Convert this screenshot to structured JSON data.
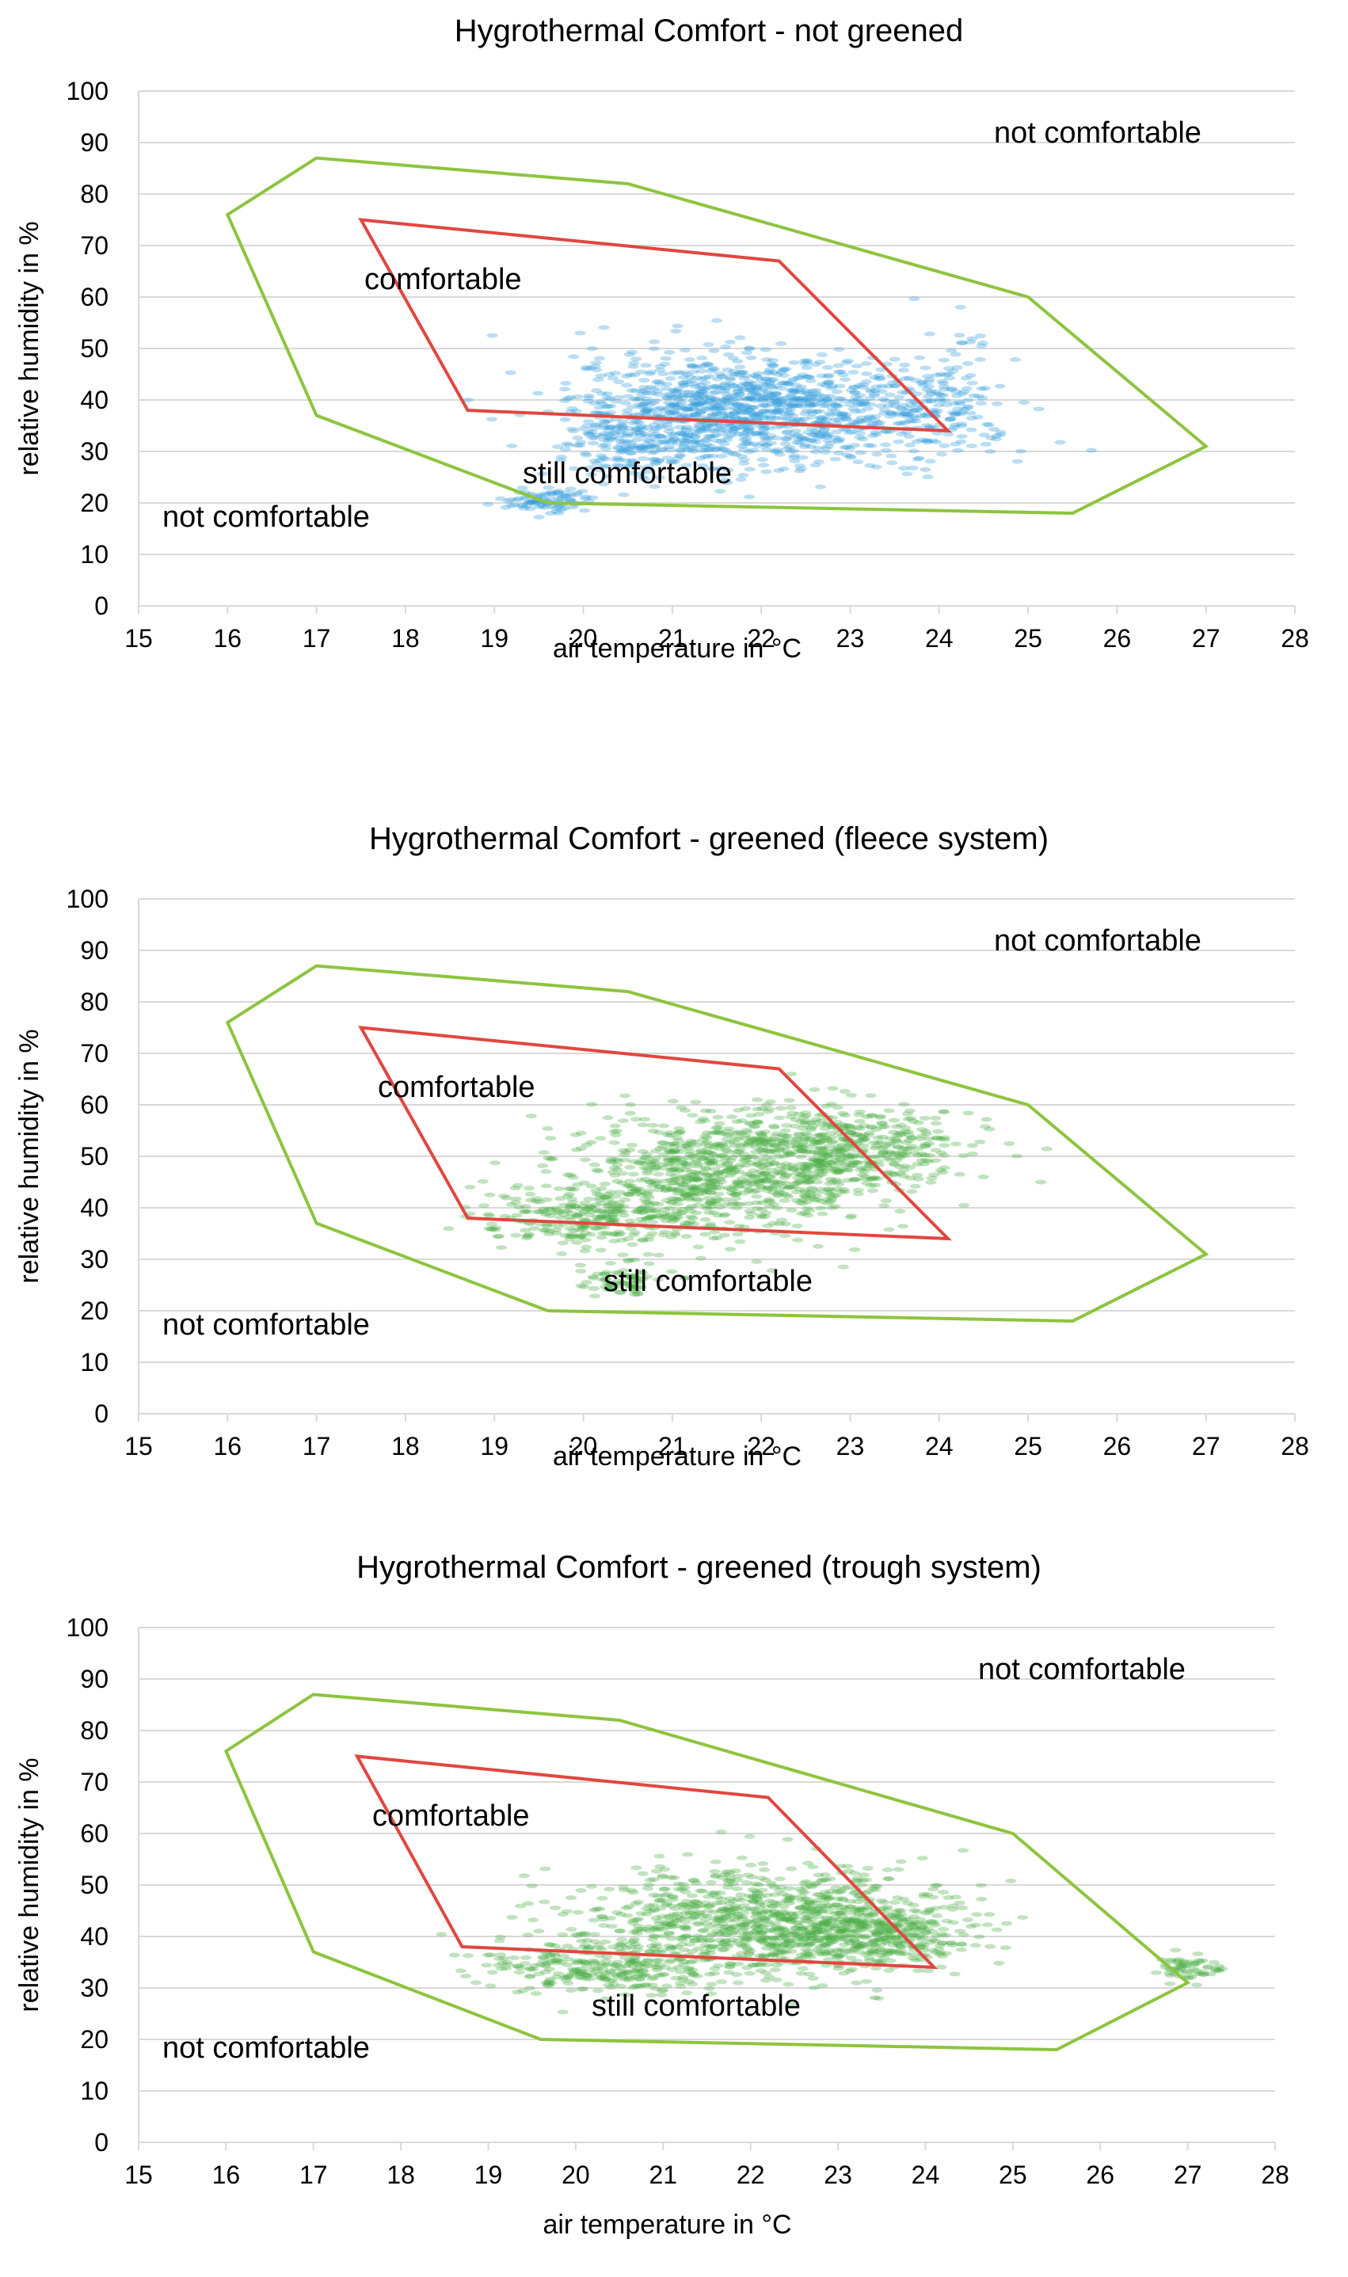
{
  "chart_data": [
    {
      "type": "scatter",
      "title": "Hygrothermal Comfort - not greened",
      "xlabel": "air temperature in °C",
      "ylabel": "relative humidity in %",
      "xlim": [
        15,
        28
      ],
      "ylim": [
        0,
        100
      ],
      "xticks": [
        "15",
        "16",
        "17",
        "18",
        "19",
        "20",
        "21",
        "22",
        "23",
        "24",
        "25",
        "26",
        "27",
        "28"
      ],
      "yticks": [
        "0",
        "10",
        "20",
        "30",
        "40",
        "50",
        "60",
        "70",
        "80",
        "90",
        "100"
      ],
      "grid": true,
      "point_color": "#3aa0dc",
      "zones": [
        {
          "color": "#8dc43f",
          "points": [
            [
              16,
              76
            ],
            [
              17,
              87
            ],
            [
              20.5,
              82
            ],
            [
              25,
              60
            ],
            [
              27,
              31
            ],
            [
              25.5,
              18
            ],
            [
              19.6,
              20
            ],
            [
              17,
              37
            ]
          ]
        },
        {
          "color": "#e0473f",
          "points": [
            [
              17.5,
              75
            ],
            [
              22.2,
              67
            ],
            [
              24.1,
              34
            ],
            [
              18.7,
              38
            ]
          ]
        }
      ],
      "annotations": [
        "not comfortable",
        "comfortable",
        "still comfortable",
        "not comfortable"
      ],
      "clusters": [
        {
          "cx": 21.5,
          "cy": 38,
          "sx": 0.8,
          "sy": 5.5,
          "n": 900
        },
        {
          "cx": 23,
          "cy": 38,
          "sx": 0.8,
          "sy": 4.5,
          "n": 350
        },
        {
          "cx": 24.1,
          "cy": 40,
          "sx": 0.35,
          "sy": 6,
          "n": 120
        },
        {
          "cx": 19.6,
          "cy": 20.5,
          "sx": 0.25,
          "sy": 1.0,
          "n": 90
        },
        {
          "cx": 20.5,
          "cy": 30,
          "sx": 0.4,
          "sy": 3.0,
          "n": 120
        }
      ]
    },
    {
      "type": "scatter",
      "title": "Hygrothermal Comfort - greened (fleece system)",
      "xlabel": "air temperature in °C",
      "ylabel": "relative humidity in %",
      "xlim": [
        15,
        28
      ],
      "ylim": [
        0,
        100
      ],
      "xticks": [
        "15",
        "16",
        "17",
        "18",
        "19",
        "20",
        "21",
        "22",
        "23",
        "24",
        "25",
        "26",
        "27",
        "28"
      ],
      "yticks": [
        "0",
        "10",
        "20",
        "30",
        "40",
        "50",
        "60",
        "70",
        "80",
        "90",
        "100"
      ],
      "grid": true,
      "point_color": "#4cae49",
      "zones": [
        {
          "color": "#8dc43f",
          "points": [
            [
              16,
              76
            ],
            [
              17,
              87
            ],
            [
              20.5,
              82
            ],
            [
              25,
              60
            ],
            [
              27,
              31
            ],
            [
              25.5,
              18
            ],
            [
              19.6,
              20
            ],
            [
              17,
              37
            ]
          ]
        },
        {
          "color": "#e0473f",
          "points": [
            [
              17.5,
              75
            ],
            [
              22.2,
              67
            ],
            [
              24.1,
              34
            ],
            [
              18.7,
              38
            ]
          ]
        }
      ],
      "annotations": [
        "not comfortable",
        "comfortable",
        "still comfortable",
        "not comfortable"
      ],
      "clusters": [
        {
          "cx": 21.8,
          "cy": 48,
          "sx": 0.9,
          "sy": 5.5,
          "n": 950
        },
        {
          "cx": 20.2,
          "cy": 38,
          "sx": 0.7,
          "sy": 3.5,
          "n": 320
        },
        {
          "cx": 23.2,
          "cy": 52,
          "sx": 0.6,
          "sy": 4.0,
          "n": 260
        },
        {
          "cx": 20.4,
          "cy": 26,
          "sx": 0.25,
          "sy": 1.5,
          "n": 70
        }
      ]
    },
    {
      "type": "scatter",
      "title": "Hygrothermal Comfort - greened (trough system)",
      "xlabel": "air temperature in °C",
      "ylabel": "relative humidity in %",
      "xlim": [
        15,
        28
      ],
      "ylim": [
        0,
        100
      ],
      "xticks": [
        "15",
        "16",
        "17",
        "18",
        "19",
        "20",
        "21",
        "22",
        "23",
        "24",
        "25",
        "26",
        "27",
        "28"
      ],
      "yticks": [
        "0",
        "10",
        "20",
        "30",
        "40",
        "50",
        "60",
        "70",
        "80",
        "90",
        "100"
      ],
      "grid": true,
      "point_color": "#4cae49",
      "zones": [
        {
          "color": "#8dc43f",
          "points": [
            [
              16,
              76
            ],
            [
              17,
              87
            ],
            [
              20.5,
              82
            ],
            [
              25,
              60
            ],
            [
              27,
              31
            ],
            [
              25.5,
              18
            ],
            [
              19.6,
              20
            ],
            [
              17,
              37
            ]
          ]
        },
        {
          "color": "#e0473f",
          "points": [
            [
              17.5,
              75
            ],
            [
              22.2,
              67
            ],
            [
              24.1,
              34
            ],
            [
              18.7,
              38
            ]
          ]
        }
      ],
      "annotations": [
        "not comfortable",
        "comfortable",
        "still comfortable",
        "not comfortable"
      ],
      "clusters": [
        {
          "cx": 22.2,
          "cy": 43,
          "sx": 1.0,
          "sy": 5.0,
          "n": 950
        },
        {
          "cx": 20.3,
          "cy": 34,
          "sx": 0.7,
          "sy": 3.0,
          "n": 300
        },
        {
          "cx": 23.4,
          "cy": 40,
          "sx": 0.6,
          "sy": 3.5,
          "n": 300
        },
        {
          "cx": 27.0,
          "cy": 34,
          "sx": 0.2,
          "sy": 1.2,
          "n": 60
        }
      ]
    }
  ]
}
